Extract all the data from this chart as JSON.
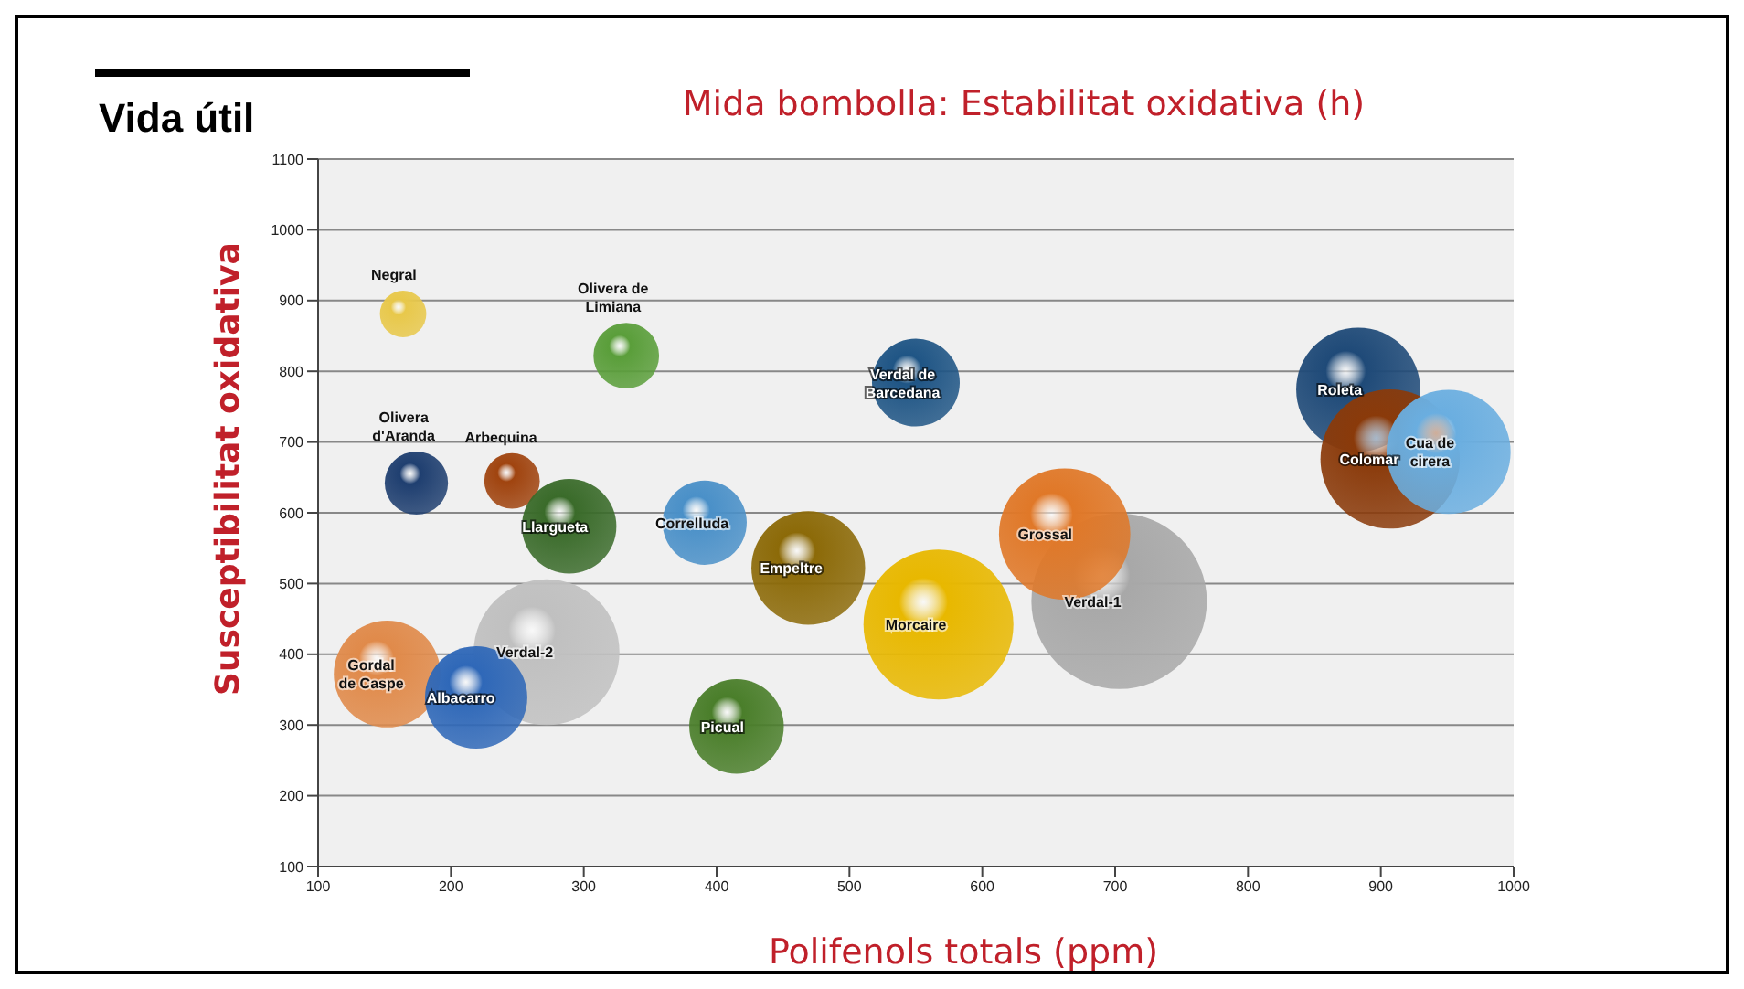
{
  "chart_data": {
    "type": "bubble",
    "title": "Vida útil",
    "subtitle": "Mida bombolla: Estabilitat oxidativa (h)",
    "xlabel": "Polifenols totals (ppm)",
    "ylabel": "Susceptibilitat oxidativa",
    "xlim": [
      100,
      1000
    ],
    "xticks": [
      100,
      200,
      300,
      400,
      500,
      600,
      700,
      800,
      900,
      1000
    ],
    "ylim": [
      100,
      1100
    ],
    "yticks": [
      100,
      200,
      300,
      400,
      500,
      600,
      700,
      800,
      900,
      1000,
      1100
    ],
    "grid": "y",
    "legend": false,
    "series": [
      {
        "name": "Negral",
        "color": "#e8c84a",
        "x": [
          164
        ],
        "values": [
          881
        ],
        "sizes": [
          0.07
        ]
      },
      {
        "name": "Olivera de Limiana",
        "color": "#5a9e3a",
        "x": [
          332
        ],
        "values": [
          822
        ],
        "sizes": [
          0.14
        ]
      },
      {
        "name": "Olivera d'Aranda",
        "color": "#1f3f70",
        "x": [
          174
        ],
        "values": [
          642
        ],
        "sizes": [
          0.13
        ]
      },
      {
        "name": "Arbequina",
        "color": "#a0440f",
        "x": [
          246
        ],
        "values": [
          645
        ],
        "sizes": [
          0.1
        ]
      },
      {
        "name": "Verdal-2",
        "color": "#c0c0c0",
        "x": [
          272
        ],
        "values": [
          403
        ],
        "sizes": [
          0.69
        ]
      },
      {
        "name": "Gordal de Caspe",
        "color": "#e08a4a",
        "x": [
          152
        ],
        "values": [
          372
        ],
        "sizes": [
          0.37
        ]
      },
      {
        "name": "Albacarro",
        "color": "#2f68b8",
        "x": [
          219
        ],
        "values": [
          339
        ],
        "sizes": [
          0.34
        ]
      },
      {
        "name": "Llargueta",
        "color": "#3a6b2a",
        "x": [
          289
        ],
        "values": [
          581
        ],
        "sizes": [
          0.29
        ]
      },
      {
        "name": "Correlluda",
        "color": "#4a90c8",
        "x": [
          391
        ],
        "values": [
          586
        ],
        "sizes": [
          0.23
        ]
      },
      {
        "name": "Empeltre",
        "color": "#8c6a08",
        "x": [
          469
        ],
        "values": [
          522
        ],
        "sizes": [
          0.42
        ]
      },
      {
        "name": "Picual",
        "color": "#4a7e2a",
        "x": [
          415
        ],
        "values": [
          298
        ],
        "sizes": [
          0.29
        ]
      },
      {
        "name": "Verdal de Barcedana",
        "color": "#1f5585",
        "x": [
          550
        ],
        "values": [
          784
        ],
        "sizes": [
          0.25
        ]
      },
      {
        "name": "Morcaire",
        "color": "#e8b800",
        "x": [
          567
        ],
        "values": [
          442
        ],
        "sizes": [
          0.73
        ]
      },
      {
        "name": "Verdal-1",
        "color": "#a8a8a8",
        "x": [
          703
        ],
        "values": [
          475
        ],
        "sizes": [
          1
        ]
      },
      {
        "name": "Grossal",
        "color": "#e07828",
        "x": [
          662
        ],
        "values": [
          570
        ],
        "sizes": [
          0.56
        ]
      },
      {
        "name": "Roleta",
        "color": "#1f4a78",
        "x": [
          883
        ],
        "values": [
          774
        ],
        "sizes": [
          0.5
        ]
      },
      {
        "name": "Colomar",
        "color": "#8a3a0a",
        "x": [
          907
        ],
        "values": [
          676
        ],
        "sizes": [
          0.63
        ]
      },
      {
        "name": "Cua de cirera",
        "color": "#6aaee0",
        "x": [
          951
        ],
        "values": [
          686
        ],
        "sizes": [
          0.5
        ]
      }
    ]
  }
}
